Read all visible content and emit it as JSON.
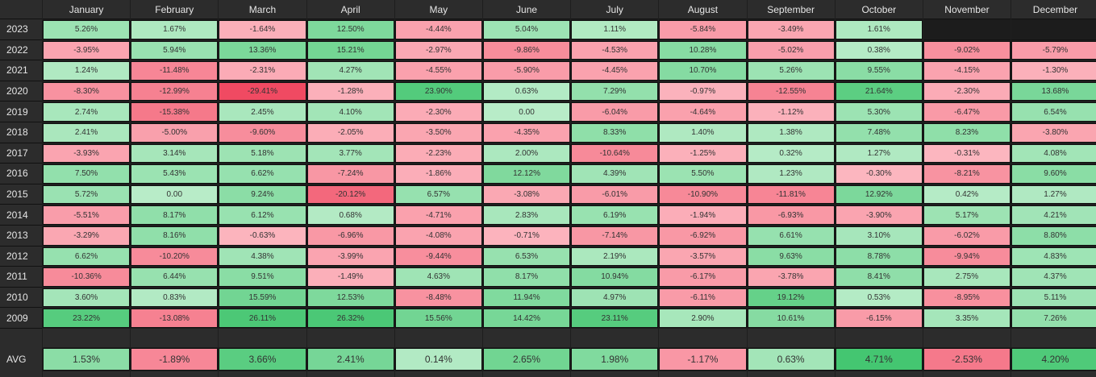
{
  "months": [
    "January",
    "February",
    "March",
    "April",
    "May",
    "June",
    "July",
    "August",
    "September",
    "October",
    "November",
    "December"
  ],
  "rows": [
    {
      "year": "2023",
      "values": [
        "5.26%",
        "1.67%",
        "-1.64%",
        "12.50%",
        "-4.44%",
        "5.04%",
        "1.11%",
        "-5.84%",
        "-3.49%",
        "1.61%",
        "",
        ""
      ]
    },
    {
      "year": "2022",
      "values": [
        "-3.95%",
        "5.94%",
        "13.36%",
        "15.21%",
        "-2.97%",
        "-9.86%",
        "-4.53%",
        "10.28%",
        "-5.02%",
        "0.38%",
        "-9.02%",
        "-5.79%"
      ]
    },
    {
      "year": "2021",
      "values": [
        "1.24%",
        "-11.48%",
        "-2.31%",
        "4.27%",
        "-4.55%",
        "-5.90%",
        "-4.45%",
        "10.70%",
        "5.26%",
        "9.55%",
        "-4.15%",
        "-1.30%"
      ]
    },
    {
      "year": "2020",
      "values": [
        "-8.30%",
        "-12.99%",
        "-29.41%",
        "-1.28%",
        "23.90%",
        "0.63%",
        "7.29%",
        "-0.97%",
        "-12.55%",
        "21.64%",
        "-2.30%",
        "13.68%"
      ]
    },
    {
      "year": "2019",
      "values": [
        "2.74%",
        "-15.38%",
        "2.45%",
        "4.10%",
        "-2.30%",
        "0.00",
        "-6.04%",
        "-4.64%",
        "-1.12%",
        "5.30%",
        "-6.47%",
        "6.54%"
      ]
    },
    {
      "year": "2018",
      "values": [
        "2.41%",
        "-5.00%",
        "-9.60%",
        "-2.05%",
        "-3.50%",
        "-4.35%",
        "8.33%",
        "1.40%",
        "1.38%",
        "7.48%",
        "8.23%",
        "-3.80%"
      ]
    },
    {
      "year": "2017",
      "values": [
        "-3.93%",
        "3.14%",
        "5.18%",
        "3.77%",
        "-2.23%",
        "2.00%",
        "-10.64%",
        "-1.25%",
        "0.32%",
        "1.27%",
        "-0.31%",
        "4.08%"
      ]
    },
    {
      "year": "2016",
      "values": [
        "7.50%",
        "5.43%",
        "6.62%",
        "-7.24%",
        "-1.86%",
        "12.12%",
        "4.39%",
        "5.50%",
        "1.23%",
        "-0.30%",
        "-8.21%",
        "9.60%"
      ]
    },
    {
      "year": "2015",
      "values": [
        "5.72%",
        "0.00",
        "9.24%",
        "-20.12%",
        "6.57%",
        "-3.08%",
        "-6.01%",
        "-10.90%",
        "-11.81%",
        "12.92%",
        "0.42%",
        "1.27%"
      ]
    },
    {
      "year": "2014",
      "values": [
        "-5.51%",
        "8.17%",
        "6.12%",
        "0.68%",
        "-4.71%",
        "2.83%",
        "6.19%",
        "-1.94%",
        "-6.93%",
        "-3.90%",
        "5.17%",
        "4.21%"
      ]
    },
    {
      "year": "2013",
      "values": [
        "-3.29%",
        "8.16%",
        "-0.63%",
        "-6.96%",
        "-4.08%",
        "-0.71%",
        "-7.14%",
        "-6.92%",
        "6.61%",
        "3.10%",
        "-6.02%",
        "8.80%"
      ]
    },
    {
      "year": "2012",
      "values": [
        "6.62%",
        "-10.20%",
        "4.38%",
        "-3.99%",
        "-9.44%",
        "6.53%",
        "2.19%",
        "-3.57%",
        "9.63%",
        "8.78%",
        "-9.94%",
        "4.83%"
      ]
    },
    {
      "year": "2011",
      "values": [
        "-10.36%",
        "6.44%",
        "9.51%",
        "-1.49%",
        "4.63%",
        "8.17%",
        "10.94%",
        "-6.17%",
        "-3.78%",
        "8.41%",
        "2.75%",
        "4.37%"
      ]
    },
    {
      "year": "2010",
      "values": [
        "3.60%",
        "0.83%",
        "15.59%",
        "12.53%",
        "-8.48%",
        "11.94%",
        "4.97%",
        "-6.11%",
        "19.12%",
        "0.53%",
        "-8.95%",
        "5.11%"
      ]
    },
    {
      "year": "2009",
      "values": [
        "23.22%",
        "-13.08%",
        "26.11%",
        "26.32%",
        "15.56%",
        "14.42%",
        "23.11%",
        "2.90%",
        "10.61%",
        "-6.15%",
        "3.35%",
        "7.26%"
      ]
    }
  ],
  "avg": {
    "label": "AVG",
    "values": [
      "1.53%",
      "-1.89%",
      "3.66%",
      "2.41%",
      "0.14%",
      "2.65%",
      "1.98%",
      "-1.17%",
      "0.63%",
      "4.71%",
      "-2.53%",
      "4.20%"
    ]
  },
  "colors": {
    "neg_light": "#fcb8c1",
    "neg_dark": "#f04860",
    "pos_light": "#b8ecc8",
    "pos_dark": "#3ec46c"
  }
}
